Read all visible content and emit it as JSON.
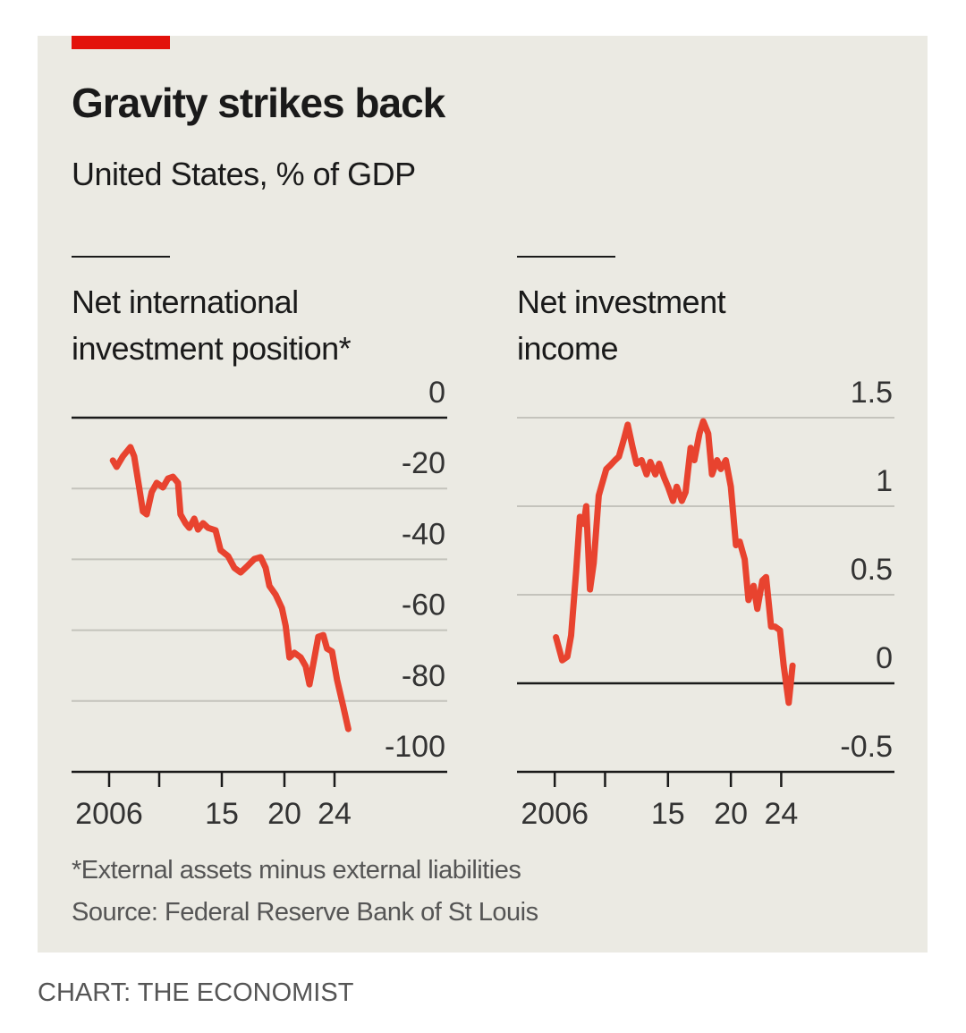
{
  "title": "Gravity strikes back",
  "subtitle": "United States, % of GDP",
  "footnote": "*External assets minus external liabilities",
  "source": "Source: Federal Reserve Bank of St Louis",
  "credit": "CHART: THE ECONOMIST",
  "chart_data": [
    {
      "type": "line",
      "title": "Net international investment position*",
      "color": "#e8432f",
      "x": [
        2006.3,
        2006.6,
        2007.1,
        2007.7,
        2008.0,
        2008.4,
        2008.7,
        2009.0,
        2009.4,
        2009.8,
        2010.3,
        2010.7,
        2011.1,
        2011.5,
        2011.7,
        2012.1,
        2012.4,
        2012.8,
        2013.1,
        2013.5,
        2013.9,
        2014.5,
        2014.9,
        2015.5,
        2016.0,
        2016.5,
        2017.1,
        2017.6,
        2018.1,
        2018.5,
        2018.8,
        2019.3,
        2019.8,
        2020.1,
        2020.4,
        2020.8,
        2021.3,
        2021.7,
        2022.0,
        2022.4,
        2022.7,
        2023.1,
        2023.4,
        2023.8,
        2024.2,
        2024.7,
        2025.1
      ],
      "values": [
        -12.1,
        -13.9,
        -10.9,
        -8.3,
        -10.9,
        -19.7,
        -26.5,
        -27.3,
        -21,
        -18.4,
        -19.7,
        -17.2,
        -16.7,
        -18.4,
        -27.3,
        -29.8,
        -31.1,
        -28.5,
        -31.6,
        -29.8,
        -31.1,
        -31.8,
        -37.4,
        -39.1,
        -42.4,
        -43.7,
        -41.7,
        -39.9,
        -39.4,
        -42.4,
        -47.5,
        -50,
        -53.8,
        -58.8,
        -67.7,
        -66.4,
        -67.7,
        -70.2,
        -75.3,
        -67.7,
        -61.9,
        -61.4,
        -65.2,
        -66,
        -74,
        -81.6,
        -87.9
      ],
      "xlim": [
        2003,
        2033
      ],
      "xticks": [
        2006,
        {
          "value": 2010,
          "label": null
        },
        {
          "value": 2015,
          "label": "15"
        },
        {
          "value": 2020,
          "label": "20"
        },
        {
          "value": 2024,
          "label": "24"
        }
      ],
      "ylim": [
        -100,
        0
      ],
      "yticks": [
        0,
        -20,
        -40,
        -60,
        -80,
        -100
      ],
      "grid": true
    },
    {
      "type": "line",
      "title": "Net investment income",
      "color": "#e8432f",
      "x": [
        2006.1,
        2006.6,
        2007.0,
        2007.3,
        2007.7,
        2008.0,
        2008.3,
        2008.5,
        2008.8,
        2009.1,
        2009.5,
        2009.7,
        2010.1,
        2010.4,
        2010.8,
        2011.1,
        2011.5,
        2011.8,
        2012.2,
        2012.5,
        2012.9,
        2013.3,
        2013.6,
        2014.0,
        2014.3,
        2014.7,
        2015.0,
        2015.4,
        2015.7,
        2016.1,
        2016.4,
        2016.8,
        2017.1,
        2017.5,
        2017.8,
        2018.2,
        2018.5,
        2018.9,
        2019.2,
        2019.6,
        2020.0,
        2020.4,
        2020.7,
        2021.1,
        2021.4,
        2021.8,
        2022.1,
        2022.5,
        2022.8,
        2023.2,
        2023.5,
        2023.9,
        2024.2,
        2024.6,
        2024.9
      ],
      "values": [
        0.26,
        0.13,
        0.15,
        0.27,
        0.63,
        0.94,
        0.9,
        1.0,
        0.53,
        0.68,
        1.06,
        1.11,
        1.21,
        1.23,
        1.26,
        1.28,
        1.38,
        1.46,
        1.33,
        1.24,
        1.26,
        1.18,
        1.25,
        1.18,
        1.24,
        1.16,
        1.11,
        1.03,
        1.11,
        1.03,
        1.08,
        1.33,
        1.26,
        1.41,
        1.48,
        1.41,
        1.18,
        1.26,
        1.21,
        1.26,
        1.11,
        0.78,
        0.8,
        0.7,
        0.47,
        0.55,
        0.42,
        0.58,
        0.6,
        0.32,
        0.32,
        0.3,
        0.1,
        -0.11,
        0.1
      ],
      "xlim": [
        2003,
        2033
      ],
      "xticks": [
        2006,
        {
          "value": 2010,
          "label": null
        },
        {
          "value": 2015,
          "label": "15"
        },
        {
          "value": 2020,
          "label": "20"
        },
        {
          "value": 2024,
          "label": "24"
        }
      ],
      "ylim": [
        -0.5,
        1.5
      ],
      "yticks": [
        1.5,
        1.0,
        0.5,
        0,
        -0.5
      ],
      "grid": true
    }
  ]
}
